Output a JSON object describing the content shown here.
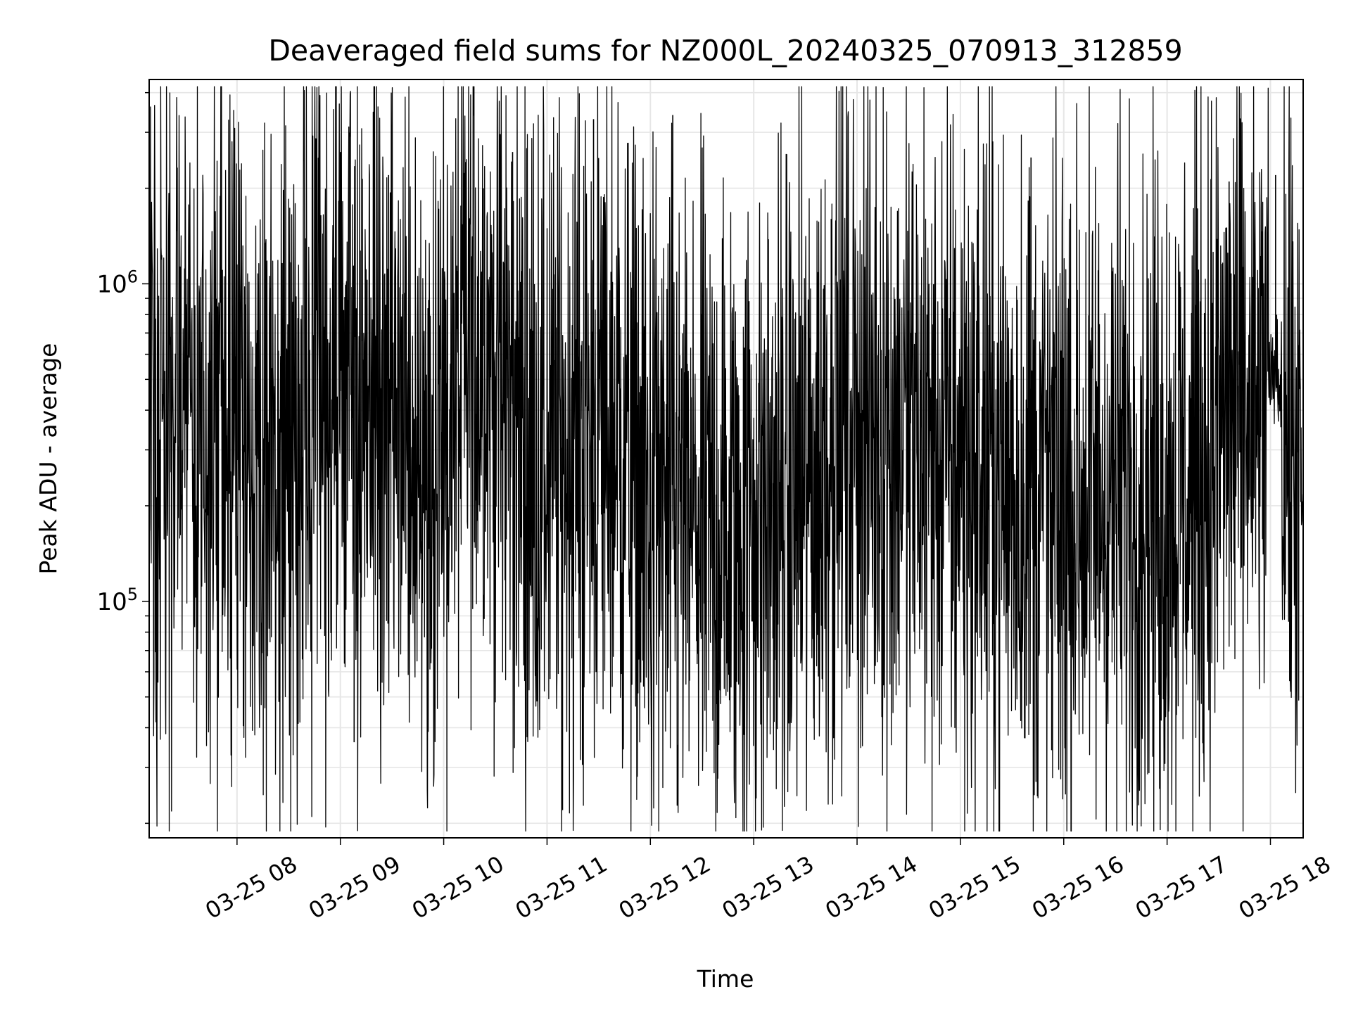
{
  "chart_data": {
    "type": "line",
    "title": "Deaveraged field sums for NZ000L_20240325_070913_312859",
    "xlabel": "Time",
    "ylabel": "Peak ADU - average",
    "yscale": "log",
    "ylim": [
      18000,
      4400000
    ],
    "xlim": [
      "03-25 07:09",
      "03-25 18:19"
    ],
    "grid": true,
    "line_color": "#000000",
    "grid_color": "#e6e6e6",
    "x_ticks": [
      "03-25 08",
      "03-25 09",
      "03-25 10",
      "03-25 11",
      "03-25 12",
      "03-25 13",
      "03-25 14",
      "03-25 15",
      "03-25 16",
      "03-25 17",
      "03-25 18"
    ],
    "y_ticks": [
      {
        "base": "10",
        "exp": "5",
        "value": 100000
      },
      {
        "base": "10",
        "exp": "6",
        "value": 1000000
      }
    ],
    "series": [
      {
        "x_hours": [
          7.15,
          7.5,
          7.9,
          8.2,
          8.4,
          8.8,
          9.1,
          9.4,
          9.75,
          10.05,
          10.3,
          10.6,
          10.85,
          11.1,
          11.4,
          11.7,
          11.95,
          12.2,
          12.5,
          12.8,
          13.1,
          13.35,
          13.6,
          13.8,
          14.1,
          14.4,
          14.7,
          15.0,
          15.3,
          15.6,
          15.9,
          16.2,
          16.5,
          16.8,
          17.1,
          17.4,
          17.6,
          17.85,
          18.05,
          18.25,
          18.3
        ],
        "values": [
          350000,
          400000,
          300000,
          240000,
          270000,
          420000,
          480000,
          450000,
          280000,
          360000,
          700000,
          500000,
          280000,
          300000,
          330000,
          350000,
          200000,
          180000,
          160000,
          170000,
          190000,
          200000,
          240000,
          400000,
          380000,
          330000,
          300000,
          280000,
          250000,
          230000,
          220000,
          210000,
          230000,
          240000,
          220000,
          280000,
          420000,
          350000,
          550000,
          250000,
          180000
        ]
      }
    ],
    "spikes": [
      {
        "t": "03-25 08:00",
        "value": 1150000
      },
      {
        "t": "03-25 09:00",
        "value": 2600000
      },
      {
        "t": "03-25 09:08",
        "value": 36000
      },
      {
        "t": "03-25 09:28",
        "value": 2200000
      },
      {
        "t": "03-25 10:23",
        "value": 2000000
      },
      {
        "t": "03-25 10:40",
        "value": 2600000
      },
      {
        "t": "03-25 11:09",
        "value": 22000
      },
      {
        "t": "03-25 11:27",
        "value": 3300000
      },
      {
        "t": "03-25 12:13",
        "value": 3400000
      },
      {
        "t": "03-25 13:45",
        "value": 1600000
      },
      {
        "t": "03-25 14:45",
        "value": 1000000
      },
      {
        "t": "03-25 15:41",
        "value": 2500000
      },
      {
        "t": "03-25 15:53",
        "value": 34000
      },
      {
        "t": "03-25 17:36",
        "value": 2100000
      },
      {
        "t": "03-25 18:03",
        "value": 2200000
      }
    ]
  }
}
